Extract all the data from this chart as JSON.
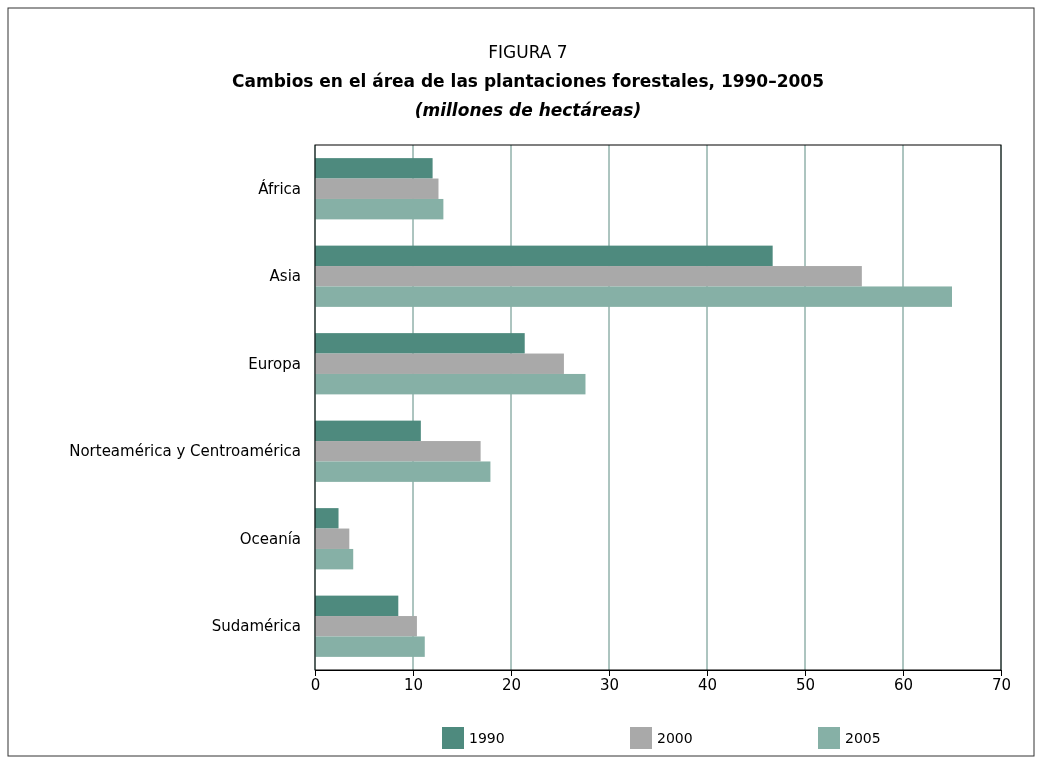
{
  "chart_data": {
    "type": "bar",
    "orientation": "horizontal",
    "title": "FIGURA 7",
    "subtitle": "Cambios en el área de las plantaciones forestales, 1990–2005",
    "annotations": [
      "(millones de hectáreas)"
    ],
    "categories": [
      "África",
      "Asia",
      "Europa",
      "Norteamérica y Centroamérica",
      "Oceanía",
      "Sudamérica"
    ],
    "series": [
      {
        "name": "1990",
        "color": "#4e8a7e",
        "values": [
          12.0,
          46.7,
          21.4,
          10.8,
          2.4,
          8.5
        ]
      },
      {
        "name": "2000",
        "color": "#a9a9a9",
        "values": [
          12.6,
          55.8,
          25.4,
          16.9,
          3.5,
          10.4
        ]
      },
      {
        "name": "2005",
        "color": "#86b0a6",
        "values": [
          13.1,
          65.0,
          27.6,
          17.9,
          3.9,
          11.2
        ]
      }
    ],
    "xlim": [
      0,
      70
    ],
    "xticks": [
      0,
      10,
      20,
      30,
      40,
      50,
      60,
      70
    ],
    "grid": "x",
    "legend": "bottom"
  }
}
